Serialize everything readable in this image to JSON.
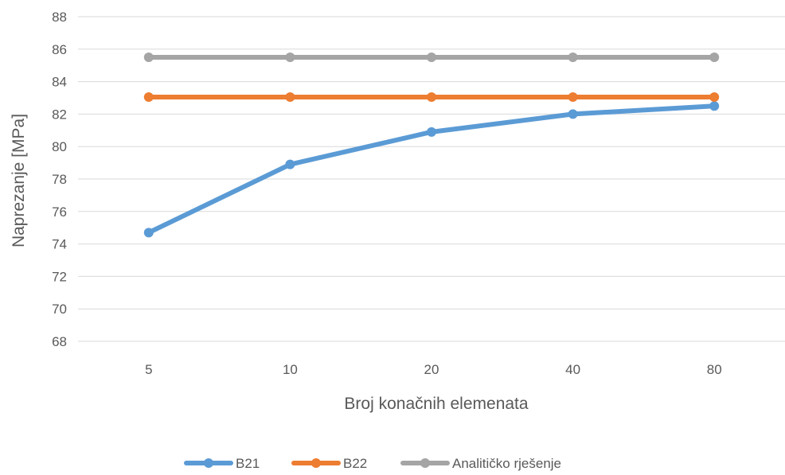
{
  "chart_data": {
    "type": "line",
    "title": "",
    "xlabel": "Broj konačnih elemenata",
    "ylabel": "Naprezanje [MPa]",
    "categories": [
      "5",
      "10",
      "20",
      "40",
      "80"
    ],
    "ylim": [
      68,
      88
    ],
    "yticks": [
      68,
      70,
      72,
      74,
      76,
      78,
      80,
      82,
      84,
      86,
      88
    ],
    "grid": true,
    "legend_position": "bottom",
    "series": [
      {
        "name": "B21",
        "color": "#5b9bd5",
        "values": [
          74.7,
          78.9,
          80.9,
          82.0,
          82.5
        ]
      },
      {
        "name": "B22",
        "color": "#ed7d31",
        "values": [
          83.05,
          83.05,
          83.05,
          83.05,
          83.05
        ]
      },
      {
        "name": "Analitičko rješenje",
        "color": "#a5a5a5",
        "values": [
          85.5,
          85.5,
          85.5,
          85.5,
          85.5
        ]
      }
    ]
  }
}
